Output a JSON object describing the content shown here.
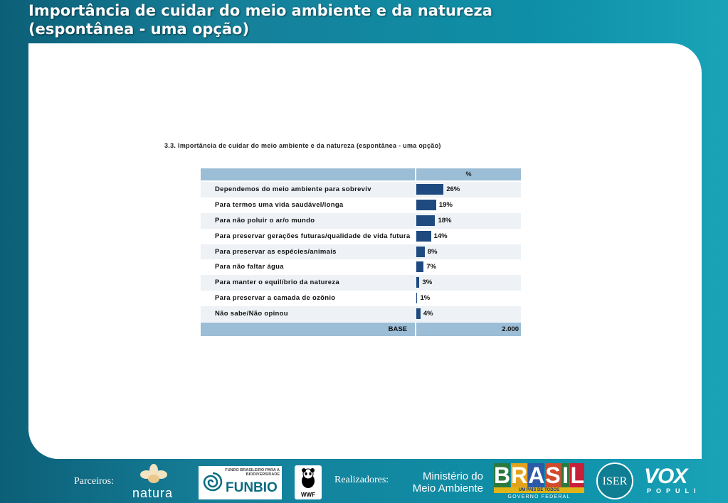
{
  "header": {
    "title_line1": "Importância de cuidar do meio ambiente e da natureza",
    "title_line2": "(espontânea - uma opção)"
  },
  "table": {
    "title": "3.3. Importância de cuidar do meio ambiente e da natureza (espontânea - uma opção)",
    "column_header": "%",
    "base_label": "BASE",
    "base_value": "2.000"
  },
  "chart_data": {
    "type": "bar",
    "categories": [
      "Dependemos do meio ambiente para sobreviv",
      "Para termos uma vida saudável/longa",
      "Para não poluir o ar/o mundo",
      "Para preservar gerações futuras/qualidade de vida futura",
      "Para preservar as espécies/animais",
      "Para não faltar água",
      "Para manter o equilíbrio da natureza",
      "Para preservar a camada de ozônio",
      "Não sabe/Não opinou"
    ],
    "values": [
      26,
      19,
      18,
      14,
      8,
      7,
      3,
      1,
      4
    ],
    "labels": [
      "26%",
      "19%",
      "18%",
      "14%",
      "8%",
      "7%",
      "3%",
      "1%",
      "4%"
    ],
    "title": "3.3. Importância de cuidar do meio ambiente e da natureza (espontânea - uma opção)",
    "xlim": [
      0,
      100
    ],
    "color": "#1f4a80"
  },
  "footer": {
    "partners_label": "Parceiros:",
    "organizers_label": "Realizadores:",
    "natura": "natura",
    "funbio_small": "FUNDO BRASILEIRO PARA A BIODIVERSIDADE",
    "funbio_big": "FUNBIO",
    "wwf": "WWF",
    "mma_line1": "Ministério do",
    "mma_line2": "Meio Ambiente",
    "brasil_letters": [
      "B",
      "R",
      "A",
      "S",
      "I",
      "L"
    ],
    "brasil_colors": [
      "#2b7a3d",
      "#e3a21c",
      "#2a5aa8",
      "#d24a2a",
      "#2b7a3d",
      "#c81f3b"
    ],
    "brasil_slogan": "UM PAÍS DE TODOS",
    "brasil_gov": "GOVERNO FEDERAL",
    "iser": "ISER",
    "vox": "VOX",
    "vox_sub": "POPULI"
  }
}
